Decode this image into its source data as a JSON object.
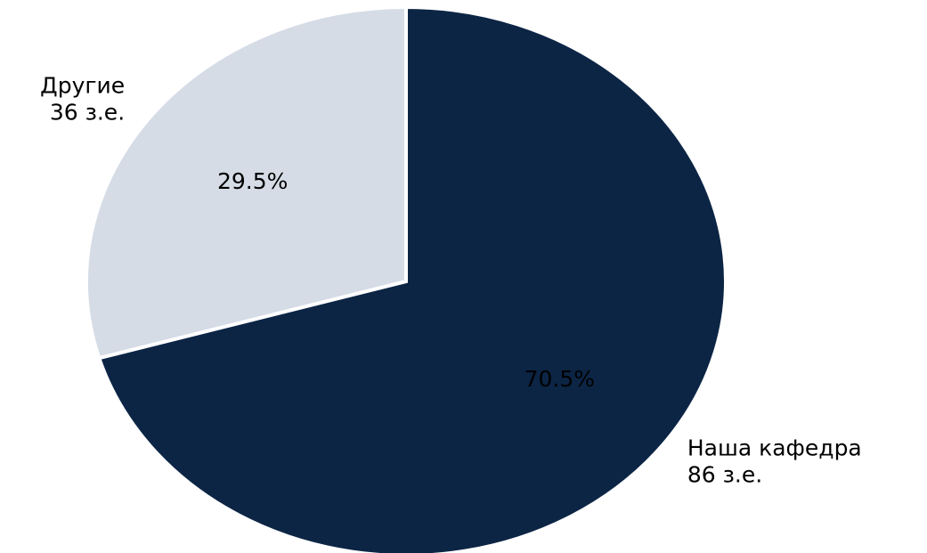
{
  "chart_data": {
    "type": "pie",
    "categories": [
      "Наша кафедра",
      "Другие"
    ],
    "values": [
      86,
      36
    ],
    "value_labels": [
      "86 з.е.",
      "36 з.е."
    ],
    "percents": [
      70.5,
      29.5
    ],
    "percent_labels": [
      "70.5%",
      "29.5%"
    ],
    "colors": [
      "#0c2545",
      "#d5dce6"
    ]
  }
}
